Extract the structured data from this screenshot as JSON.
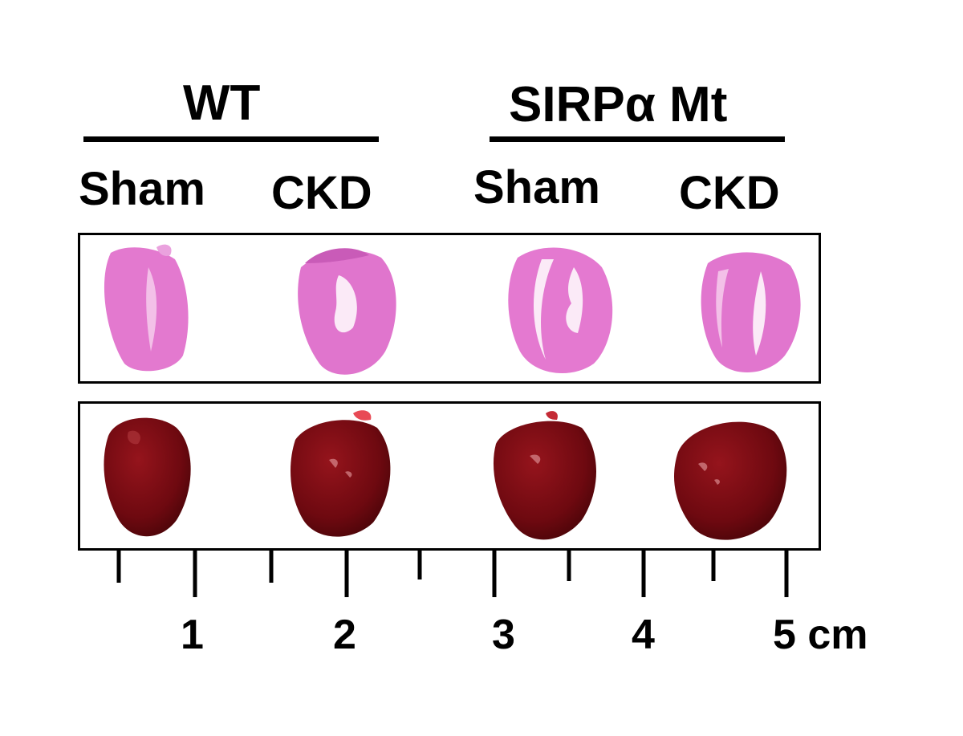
{
  "groups": [
    {
      "label": "WT",
      "conditions": [
        "Sham",
        "CKD"
      ]
    },
    {
      "label": "SIRPα Mt",
      "conditions": [
        "Sham",
        "CKD"
      ]
    }
  ],
  "scale": {
    "tick_labels": [
      "1",
      "2",
      "3",
      "4",
      "5 cm"
    ],
    "unit": "cm"
  },
  "panels": [
    {
      "name": "histology-panel",
      "stain_color": "#e77ad0",
      "content": "H&E-stained heart cross-sections"
    },
    {
      "name": "gross-heart-panel",
      "tissue_color": "#7a0a12",
      "content": "whole hearts"
    }
  ]
}
